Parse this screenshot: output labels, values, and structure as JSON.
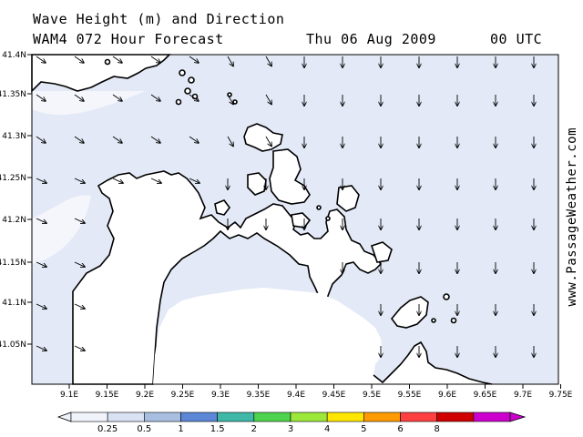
{
  "header": {
    "title": "Wave Height (m) and Direction",
    "model": "WAM4 072 Hour Forecast",
    "date": "Thu 06 Aug 2009",
    "time": "00 UTC"
  },
  "credit": "www.PassageWeather.com",
  "map": {
    "sea_color": "#e3e9f6",
    "land_color": "#ffffff",
    "lat_labels": [
      "41.4N",
      "41.35N",
      "41.3N",
      "41.25N",
      "41.2N",
      "41.15N",
      "41.1N",
      "41.05N"
    ],
    "lon_labels": [
      "9.1E",
      "9.15E",
      "9.2E",
      "9.25E",
      "9.3E",
      "9.35E",
      "9.4E",
      "9.45E",
      "9.5E",
      "9.55E",
      "9.6E",
      "9.65E",
      "9.7E",
      "9.75E"
    ],
    "lat_range": [
      41.0,
      41.4
    ],
    "lon_range": [
      9.05,
      9.75
    ]
  },
  "legend": {
    "ticks": [
      "0.25",
      "0.5",
      "1",
      "1.5",
      "2",
      "3",
      "4",
      "5",
      "6",
      "8"
    ],
    "colors": [
      "#f0f3fa",
      "#d9e2f3",
      "#a9bfe2",
      "#5b87d6",
      "#3fb8a8",
      "#4ed34e",
      "#9be83a",
      "#ffe600",
      "#ff9a00",
      "#ff4040",
      "#d00000",
      "#cc00cc"
    ]
  }
}
